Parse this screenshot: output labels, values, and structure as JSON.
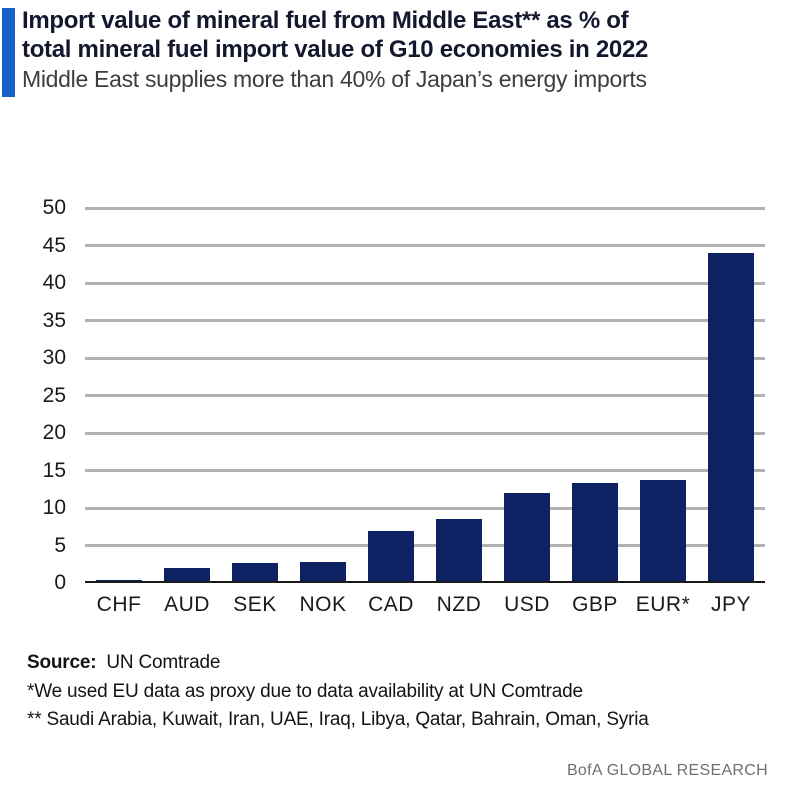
{
  "header": {
    "title_line1": "Import value of mineral fuel from Middle East** as % of",
    "title_line2": "total mineral fuel import value of G10 economies in 2022",
    "subtitle": "Middle East supplies more than 40% of Japan’s energy imports",
    "accent_color": "#1760C8"
  },
  "chart_data": {
    "type": "bar",
    "categories": [
      "CHF",
      "AUD",
      "SEK",
      "NOK",
      "CAD",
      "NZD",
      "USD",
      "GBP",
      "EUR*",
      "JPY"
    ],
    "values": [
      0.4,
      2.0,
      2.7,
      2.8,
      7.0,
      8.5,
      12.0,
      13.3,
      13.7,
      44.0
    ],
    "title": "Import value of mineral fuel from Middle East** as % of total mineral fuel import value of G10 economies in 2022",
    "subtitle": "Middle East supplies more than 40% of Japan’s energy imports",
    "xlabel": "",
    "ylabel": "",
    "ylim": [
      0,
      50
    ],
    "ytick_step": 5,
    "grid": true,
    "legend": "none",
    "bar_color": "#0E2263",
    "gridline_color": "#B2B2B2",
    "axis_line_color": "#1a1a1a"
  },
  "footer": {
    "source_label": "Source:",
    "source_value": "UN Comtrade",
    "footnote1": "*We used EU data as proxy due to data availability at UN Comtrade",
    "footnote2": "** Saudi Arabia, Kuwait, Iran, UAE, Iraq, Libya, Qatar, Bahrain, Oman, Syria",
    "brand": "BofA GLOBAL RESEARCH"
  }
}
